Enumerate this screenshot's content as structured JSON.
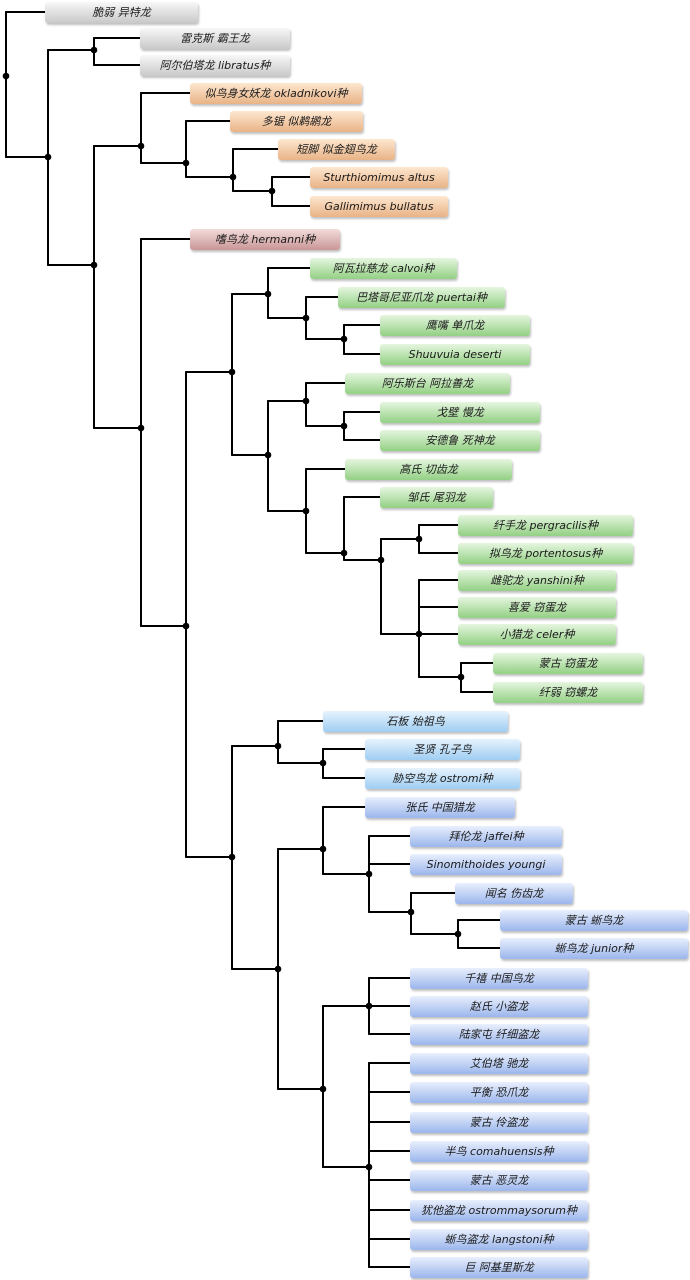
{
  "colors": {
    "grey": "#d4d4d4",
    "orange": "#efbf93",
    "red": "#d4a3a3",
    "green": "#a5da97",
    "light_blue": "#afd6f5",
    "blue": "#a8c0ef",
    "branch": "#000000"
  },
  "taxa": [
    {
      "id": "t0",
      "label": "脆弱 异特龙",
      "group": "grey"
    },
    {
      "id": "t1",
      "label": "雷克斯 霸王龙",
      "group": "grey"
    },
    {
      "id": "t2",
      "label": "阿尔伯塔龙 libratus种",
      "group": "grey"
    },
    {
      "id": "t3",
      "label": "似鸟身女妖龙 okladnikovi种",
      "group": "orange"
    },
    {
      "id": "t4",
      "label": "多锯 似鹈鹕龙",
      "group": "orange"
    },
    {
      "id": "t5",
      "label": "短脚 似金翅鸟龙",
      "group": "orange"
    },
    {
      "id": "t6",
      "label": "Sturthiomimus altus",
      "group": "orange"
    },
    {
      "id": "t7",
      "label": "Gallimimus bullatus",
      "group": "orange"
    },
    {
      "id": "t8",
      "label": "嗜鸟龙 hermanni种",
      "group": "red"
    },
    {
      "id": "t9",
      "label": "阿瓦拉慈龙 calvoi种",
      "group": "green"
    },
    {
      "id": "t10",
      "label": "巴塔哥尼亚爪龙 puertai种",
      "group": "green"
    },
    {
      "id": "t11",
      "label": "鹰嘴 单爪龙",
      "group": "green"
    },
    {
      "id": "t12",
      "label": "Shuuvuia deserti",
      "group": "green"
    },
    {
      "id": "t13",
      "label": "阿乐斯台 阿拉善龙",
      "group": "green"
    },
    {
      "id": "t14",
      "label": "戈壁 慢龙",
      "group": "green"
    },
    {
      "id": "t15",
      "label": "安德鲁 死神龙",
      "group": "green"
    },
    {
      "id": "t16",
      "label": "高氏 切齿龙",
      "group": "green"
    },
    {
      "id": "t17",
      "label": "邹氏 尾羽龙",
      "group": "green"
    },
    {
      "id": "t18",
      "label": "纤手龙 pergracilis种",
      "group": "green"
    },
    {
      "id": "t19",
      "label": "拟鸟龙 portentosus种",
      "group": "green"
    },
    {
      "id": "t20",
      "label": "雌驼龙 yanshini种",
      "group": "green"
    },
    {
      "id": "t21",
      "label": "喜爱 窃蛋龙",
      "group": "green"
    },
    {
      "id": "t22",
      "label": "小猎龙 celer种",
      "group": "green"
    },
    {
      "id": "t23",
      "label": "蒙古 窃蛋龙",
      "group": "green"
    },
    {
      "id": "t24",
      "label": "纤弱 窃螺龙",
      "group": "green"
    },
    {
      "id": "t25",
      "label": "石板 始祖鸟",
      "group": "light_blue"
    },
    {
      "id": "t26",
      "label": "圣贤 孔子鸟",
      "group": "light_blue"
    },
    {
      "id": "t27",
      "label": "胁空鸟龙 ostromi种",
      "group": "light_blue"
    },
    {
      "id": "t28",
      "label": "张氏 中国猎龙",
      "group": "blue"
    },
    {
      "id": "t29",
      "label": "拜伦龙 jaffei种",
      "group": "blue"
    },
    {
      "id": "t30",
      "label": "Sinomithoides youngi",
      "group": "blue"
    },
    {
      "id": "t31",
      "label": "闻名 伤齿龙",
      "group": "blue"
    },
    {
      "id": "t32",
      "label": "蒙古 蜥鸟龙",
      "group": "blue"
    },
    {
      "id": "t33",
      "label": "蜥鸟龙 junior种",
      "group": "blue"
    },
    {
      "id": "t34",
      "label": "千禧 中国鸟龙",
      "group": "blue"
    },
    {
      "id": "t35",
      "label": "赵氏 小盗龙",
      "group": "blue"
    },
    {
      "id": "t36",
      "label": "陆家屯 纤细盗龙",
      "group": "blue"
    },
    {
      "id": "t37",
      "label": "艾伯塔 驰龙",
      "group": "blue"
    },
    {
      "id": "t38",
      "label": "平衡 恐爪龙",
      "group": "blue"
    },
    {
      "id": "t39",
      "label": "蒙古 伶盗龙",
      "group": "blue"
    },
    {
      "id": "t40",
      "label": "半鸟 comahuensis种",
      "group": "blue"
    },
    {
      "id": "t41",
      "label": "蒙古 恶灵龙",
      "group": "blue"
    },
    {
      "id": "t42",
      "label": "犹他盗龙 ostrommaysorum种",
      "group": "blue"
    },
    {
      "id": "t43",
      "label": "蜥鸟盗龙 langstoni种",
      "group": "blue"
    },
    {
      "id": "t44",
      "label": "巨 阿基里斯龙",
      "group": "blue"
    }
  ]
}
